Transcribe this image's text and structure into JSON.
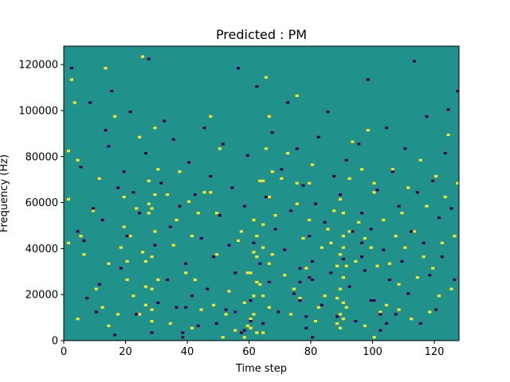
{
  "chart_data": {
    "type": "heatmap",
    "title": "Predicted : PM",
    "xlabel": "Time step",
    "ylabel": "Frequency (Hz)",
    "xlim": [
      0,
      128
    ],
    "ylim": [
      0,
      128000
    ],
    "x_ticks": [
      0,
      20,
      40,
      60,
      80,
      100,
      120
    ],
    "y_ticks": [
      0,
      20000,
      40000,
      60000,
      80000,
      100000,
      120000
    ],
    "y_tick_labels": [
      "0",
      "20000",
      "40000",
      "60000",
      "80000",
      "100000",
      "120000"
    ],
    "grid": false,
    "legend": "none",
    "n_time_steps": 128,
    "n_frequency_bins": 128,
    "frequency_bin_width_hz": 1000,
    "colors": {
      "background": "#21918c",
      "high": "#fde725",
      "low": "#440154"
    },
    "cells": {
      "note": "grid values: 0 = background (teal), 1 = high (yellow), -1 = low (purple); x = time step, y = frequency in Hz",
      "high": [
        [
          1,
          42000
        ],
        [
          1,
          61000
        ],
        [
          1,
          82000
        ],
        [
          2,
          113000
        ],
        [
          3,
          103000
        ],
        [
          4,
          78000
        ],
        [
          4,
          9000
        ],
        [
          5,
          45000
        ],
        [
          6,
          37000
        ],
        [
          9,
          56000
        ],
        [
          10,
          22000
        ],
        [
          11,
          70000
        ],
        [
          12,
          14000
        ],
        [
          13,
          118000
        ],
        [
          14,
          33000
        ],
        [
          14,
          6000
        ],
        [
          16,
          97000
        ],
        [
          17,
          11000
        ],
        [
          18,
          40000
        ],
        [
          19,
          49000
        ],
        [
          19,
          62000
        ],
        [
          20,
          26000
        ],
        [
          20,
          34000
        ],
        [
          21,
          45000
        ],
        [
          22,
          19000
        ],
        [
          23,
          57000
        ],
        [
          24,
          11000
        ],
        [
          24,
          88000
        ],
        [
          25,
          123000
        ],
        [
          25,
          38000
        ],
        [
          26,
          15000
        ],
        [
          26,
          34000
        ],
        [
          27,
          55000
        ],
        [
          27,
          69000
        ],
        [
          28,
          8000
        ],
        [
          28,
          13000
        ],
        [
          28,
          22000
        ],
        [
          28,
          36000
        ],
        [
          29,
          47000
        ],
        [
          29,
          63000
        ],
        [
          29,
          92000
        ],
        [
          30,
          26000
        ],
        [
          30,
          74000
        ],
        [
          33,
          63000
        ],
        [
          34,
          7000
        ],
        [
          35,
          41000
        ],
        [
          36,
          52000
        ],
        [
          37,
          73000
        ],
        [
          39,
          29000
        ],
        [
          40,
          60000
        ],
        [
          41,
          5000
        ],
        [
          41,
          45000
        ],
        [
          42,
          26000
        ],
        [
          43,
          55000
        ],
        [
          44,
          13000
        ],
        [
          45,
          64000
        ],
        [
          47,
          64000
        ],
        [
          47,
          97000
        ],
        [
          48,
          15000
        ],
        [
          49,
          37000
        ],
        [
          49,
          55000
        ],
        [
          50,
          83000
        ],
        [
          51,
          1000
        ],
        [
          52,
          11000
        ],
        [
          53,
          21000
        ],
        [
          55,
          4000
        ],
        [
          56,
          43000
        ],
        [
          57,
          47000
        ],
        [
          58,
          1000
        ],
        [
          58,
          16000
        ],
        [
          59,
          6000
        ],
        [
          59,
          29000
        ],
        [
          60,
          9000
        ],
        [
          60,
          29000
        ],
        [
          61,
          11000
        ],
        [
          61,
          19000
        ],
        [
          61,
          38000
        ],
        [
          61,
          52000
        ],
        [
          62,
          3000
        ],
        [
          62,
          45000
        ],
        [
          62,
          36000
        ],
        [
          63,
          24000
        ],
        [
          63,
          69000
        ],
        [
          64,
          3000
        ],
        [
          64,
          19000
        ],
        [
          64,
          50000
        ],
        [
          64,
          69000
        ],
        [
          65,
          83000
        ],
        [
          65,
          114000
        ],
        [
          66,
          14000
        ],
        [
          66,
          33000
        ],
        [
          66,
          62000
        ],
        [
          66,
          97000
        ],
        [
          67,
          37000
        ],
        [
          67,
          73000
        ],
        [
          68,
          54000
        ],
        [
          70,
          70000
        ],
        [
          71,
          28000
        ],
        [
          72,
          81000
        ],
        [
          73,
          11000
        ],
        [
          74,
          22000
        ],
        [
          75,
          59000
        ],
        [
          75,
          106000
        ],
        [
          75,
          68000
        ],
        [
          76,
          18000
        ],
        [
          77,
          44000
        ],
        [
          78,
          31000
        ],
        [
          79,
          52000
        ],
        [
          79,
          68000
        ],
        [
          80,
          76000
        ],
        [
          81,
          8000
        ],
        [
          82,
          14000
        ],
        [
          83,
          40000
        ],
        [
          84,
          19000
        ],
        [
          85,
          48000
        ],
        [
          86,
          42000
        ],
        [
          87,
          56000
        ],
        [
          88,
          32000
        ],
        [
          88,
          18000
        ],
        [
          89,
          5000
        ],
        [
          89,
          22000
        ],
        [
          89,
          37000
        ],
        [
          89,
          61000
        ],
        [
          90,
          9000
        ],
        [
          90,
          27000
        ],
        [
          90,
          40000
        ],
        [
          90,
          55000
        ],
        [
          91,
          14000
        ],
        [
          91,
          32000
        ],
        [
          92,
          47000
        ],
        [
          92,
          70000
        ],
        [
          93,
          86000
        ],
        [
          94,
          34000
        ],
        [
          95,
          51000
        ],
        [
          96,
          74000
        ],
        [
          97,
          6000
        ],
        [
          97,
          44000
        ],
        [
          98,
          91000
        ],
        [
          99,
          40000
        ],
        [
          100,
          1000
        ],
        [
          100,
          68000
        ],
        [
          100,
          64000
        ],
        [
          101,
          32000
        ],
        [
          102,
          12000
        ],
        [
          103,
          52000
        ],
        [
          104,
          15000
        ],
        [
          105,
          33000
        ],
        [
          106,
          74000
        ],
        [
          107,
          45000
        ],
        [
          108,
          13000
        ],
        [
          108,
          24000
        ],
        [
          109,
          55000
        ],
        [
          110,
          40000
        ],
        [
          111,
          66000
        ],
        [
          112,
          9000
        ],
        [
          113,
          47000
        ],
        [
          114,
          27000
        ],
        [
          115,
          78000
        ],
        [
          116,
          36000
        ],
        [
          117,
          58000
        ],
        [
          118,
          12000
        ],
        [
          119,
          31000
        ],
        [
          120,
          71000
        ],
        [
          121,
          19000
        ],
        [
          122,
          42000
        ],
        [
          123,
          62000
        ],
        [
          124,
          89000
        ],
        [
          125,
          22000
        ],
        [
          126,
          45000
        ],
        [
          127,
          68000
        ],
        [
          27,
          59000
        ],
        [
          28,
          57000
        ],
        [
          60,
          5000
        ],
        [
          62,
          25000
        ],
        [
          88,
          7000
        ],
        [
          89,
          11000
        ],
        [
          90,
          16000
        ],
        [
          90,
          45000
        ],
        [
          26,
          23000
        ],
        [
          64,
          40000
        ]
      ],
      "low": [
        [
          2,
          118000
        ],
        [
          4,
          47000
        ],
        [
          5,
          75000
        ],
        [
          6,
          43000
        ],
        [
          7,
          18000
        ],
        [
          8,
          103000
        ],
        [
          9,
          57000
        ],
        [
          10,
          12000
        ],
        [
          11,
          24000
        ],
        [
          12,
          52000
        ],
        [
          13,
          91000
        ],
        [
          14,
          84000
        ],
        [
          15,
          108000
        ],
        [
          16,
          2000
        ],
        [
          17,
          66000
        ],
        [
          18,
          31000
        ],
        [
          19,
          73000
        ],
        [
          20,
          45000
        ],
        [
          21,
          99000
        ],
        [
          22,
          64000
        ],
        [
          23,
          11000
        ],
        [
          24,
          55000
        ],
        [
          26,
          81000
        ],
        [
          27,
          122000
        ],
        [
          28,
          3000
        ],
        [
          29,
          41000
        ],
        [
          30,
          16000
        ],
        [
          31,
          68000
        ],
        [
          32,
          95000
        ],
        [
          33,
          26000
        ],
        [
          34,
          49000
        ],
        [
          35,
          87000
        ],
        [
          36,
          14000
        ],
        [
          37,
          58000
        ],
        [
          38,
          1000
        ],
        [
          39,
          33000
        ],
        [
          40,
          77000
        ],
        [
          41,
          19000
        ],
        [
          42,
          63000
        ],
        [
          43,
          6000
        ],
        [
          44,
          44000
        ],
        [
          45,
          92000
        ],
        [
          46,
          22000
        ],
        [
          47,
          71000
        ],
        [
          48,
          36000
        ],
        [
          49,
          7000
        ],
        [
          50,
          54000
        ],
        [
          51,
          85000
        ],
        [
          52,
          13000
        ],
        [
          53,
          41000
        ],
        [
          54,
          66000
        ],
        [
          55,
          29000
        ],
        [
          56,
          118000
        ],
        [
          57,
          3000
        ],
        [
          58,
          58000
        ],
        [
          59,
          80000
        ],
        [
          60,
          17000
        ],
        [
          61,
          42000
        ],
        [
          62,
          110000
        ],
        [
          63,
          33000
        ],
        [
          64,
          7000
        ],
        [
          65,
          62000
        ],
        [
          66,
          25000
        ],
        [
          67,
          90000
        ],
        [
          68,
          48000
        ],
        [
          69,
          12000
        ],
        [
          70,
          74000
        ],
        [
          71,
          39000
        ],
        [
          72,
          103000
        ],
        [
          73,
          56000
        ],
        [
          74,
          20000
        ],
        [
          75,
          83000
        ],
        [
          76,
          31000
        ],
        [
          77,
          67000
        ],
        [
          78,
          5000
        ],
        [
          79,
          45000
        ],
        [
          80,
          26000
        ],
        [
          81,
          59000
        ],
        [
          82,
          88000
        ],
        [
          83,
          15000
        ],
        [
          84,
          51000
        ],
        [
          85,
          99000
        ],
        [
          86,
          29000
        ],
        [
          87,
          71000
        ],
        [
          88,
          10000
        ],
        [
          89,
          63000
        ],
        [
          90,
          35000
        ],
        [
          91,
          78000
        ],
        [
          92,
          23000
        ],
        [
          93,
          47000
        ],
        [
          94,
          8000
        ],
        [
          95,
          85000
        ],
        [
          96,
          55000
        ],
        [
          97,
          30000
        ],
        [
          98,
          113000
        ],
        [
          99,
          48000
        ],
        [
          100,
          17000
        ],
        [
          101,
          65000
        ],
        [
          102,
          4000
        ],
        [
          103,
          39000
        ],
        [
          104,
          92000
        ],
        [
          105,
          26000
        ],
        [
          106,
          73000
        ],
        [
          107,
          11000
        ],
        [
          108,
          58000
        ],
        [
          109,
          34000
        ],
        [
          110,
          83000
        ],
        [
          111,
          20000
        ],
        [
          112,
          47000
        ],
        [
          113,
          121000
        ],
        [
          114,
          64000
        ],
        [
          115,
          7000
        ],
        [
          116,
          42000
        ],
        [
          117,
          97000
        ],
        [
          118,
          28000
        ],
        [
          119,
          69000
        ],
        [
          120,
          13000
        ],
        [
          121,
          53000
        ],
        [
          122,
          36000
        ],
        [
          123,
          81000
        ],
        [
          124,
          100000
        ],
        [
          125,
          57000
        ],
        [
          126,
          26000
        ],
        [
          127,
          108000
        ],
        [
          38,
          3000
        ],
        [
          39,
          14000
        ],
        [
          58,
          4000
        ],
        [
          60,
          8000
        ],
        [
          76,
          17000
        ],
        [
          76,
          25000
        ],
        [
          78,
          10000
        ],
        [
          79,
          27000
        ],
        [
          80,
          34000
        ],
        [
          80,
          1000
        ],
        [
          96,
          36000
        ],
        [
          96,
          42000
        ],
        [
          99,
          17000
        ],
        [
          102,
          11000
        ],
        [
          104,
          7000
        ],
        [
          55,
          12000
        ]
      ]
    }
  }
}
